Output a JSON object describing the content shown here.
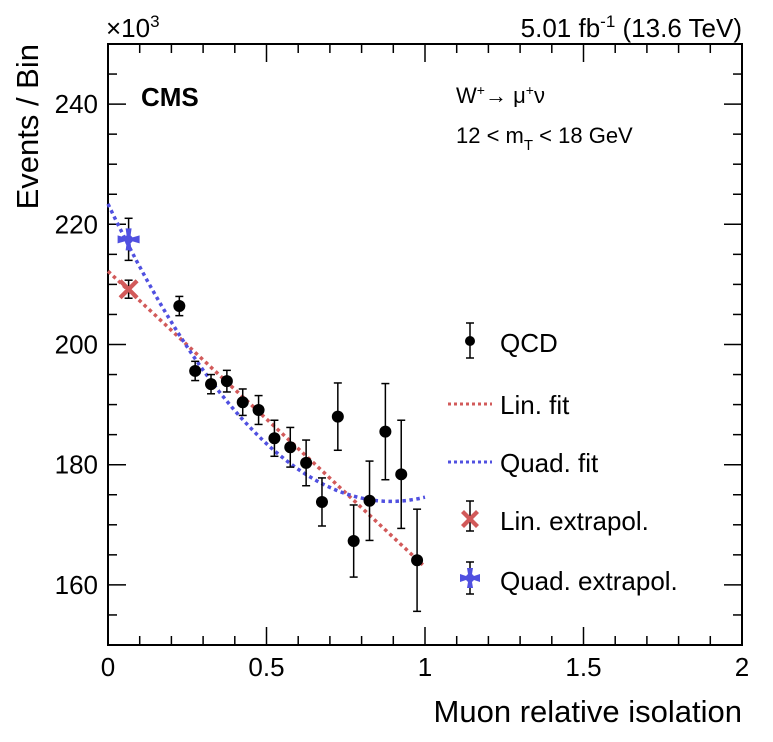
{
  "chart_data": {
    "type": "scatter",
    "title": "",
    "xlabel": "Muon relative isolation",
    "ylabel": "Events / Bin",
    "y_multiplier_label": "×10",
    "y_multiplier_exp": "3",
    "xlim": [
      0,
      2
    ],
    "ylim": [
      150,
      250
    ],
    "x_ticks": [
      "0",
      "0.5",
      "1",
      "1.5",
      "2"
    ],
    "x_tick_values": [
      0,
      0.5,
      1,
      1.5,
      2
    ],
    "y_ticks": [
      "160",
      "180",
      "200",
      "220",
      "240"
    ],
    "y_tick_values": [
      160,
      180,
      200,
      220,
      240
    ],
    "grid": false,
    "legend_position": "right",
    "lumi_label": "5.01 fb",
    "lumi_exp": "-1",
    "energy_label": " (13.6 TeV)",
    "experiment_label": "CMS",
    "process_label": {
      "base": "W",
      "sup1": "+",
      "arrow": "→ μ",
      "sup2": "+",
      "tail": "ν"
    },
    "mt_label": {
      "pre": "12 < m",
      "sub": "T",
      "post": " < 18 GeV"
    },
    "series": [
      {
        "name": "QCD",
        "kind": "points",
        "color": "#000000",
        "x": [
          0.225,
          0.275,
          0.325,
          0.375,
          0.425,
          0.475,
          0.525,
          0.575,
          0.625,
          0.675,
          0.725,
          0.775,
          0.825,
          0.875,
          0.925,
          0.975
        ],
        "y": [
          206.4,
          195.6,
          193.4,
          193.9,
          190.4,
          189.1,
          184.4,
          182.9,
          180.3,
          173.8,
          188.0,
          167.3,
          174.0,
          185.5,
          178.4,
          164.1
        ],
        "yerr": [
          1.6,
          1.6,
          1.6,
          1.8,
          2.2,
          2.4,
          3.0,
          3.3,
          3.8,
          4.0,
          5.6,
          6.0,
          6.6,
          8.0,
          9.0,
          8.5
        ]
      },
      {
        "name": "Lin. fit",
        "kind": "line",
        "color": "#d25a5a",
        "model": "linear",
        "coefficients": [
          212.2,
          -49.2
        ],
        "x_range": [
          0,
          1
        ]
      },
      {
        "name": "Quad. fit",
        "kind": "line",
        "color": "#5050e0",
        "model": "quadratic",
        "coefficients": [
          223.4,
          -110.8,
          62.0
        ],
        "x_range": [
          0,
          1
        ]
      },
      {
        "name": "Lin. extrapol.",
        "kind": "marker-x",
        "color": "#d25a5a",
        "x": [
          0.065
        ],
        "y": [
          209.2
        ],
        "yerr": [
          1.5
        ]
      },
      {
        "name": "Quad. extrapol.",
        "kind": "marker-star",
        "color": "#5050e0",
        "x": [
          0.065
        ],
        "y": [
          217.5
        ],
        "yerr": [
          3.5
        ]
      }
    ]
  }
}
